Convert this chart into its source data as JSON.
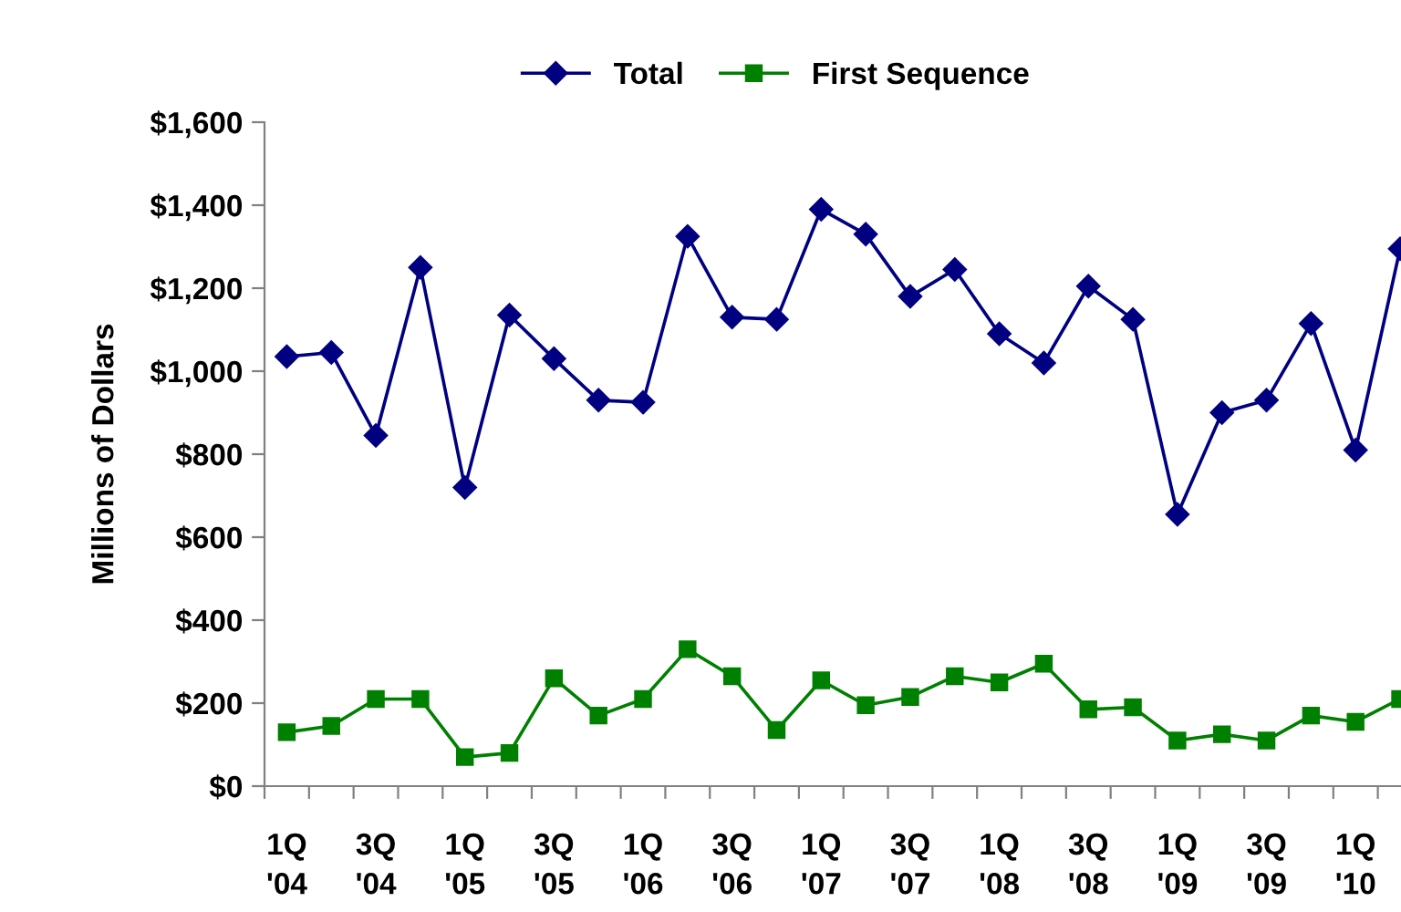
{
  "chart_data": {
    "type": "line",
    "ylabel": "Millions of Dollars",
    "categories": [
      "1Q\n'04",
      null,
      "3Q\n'04",
      null,
      "1Q\n'05",
      null,
      "3Q\n'05",
      null,
      "1Q\n'06",
      null,
      "3Q\n'06",
      null,
      "1Q\n'07",
      null,
      "3Q\n'07",
      null,
      "1Q\n'08",
      null,
      "3Q\n'08",
      null,
      "1Q\n'09",
      null,
      "3Q\n'09",
      null,
      "1Q\n'10",
      null
    ],
    "series": [
      {
        "name": "Total",
        "color": "#000080",
        "marker": "diamond",
        "values": [
          1035,
          1045,
          845,
          1250,
          720,
          1135,
          1030,
          930,
          925,
          1325,
          1130,
          1125,
          1390,
          1330,
          1180,
          1245,
          1090,
          1020,
          1205,
          1125,
          655,
          900,
          930,
          1115,
          810,
          1295
        ]
      },
      {
        "name": "First Sequence",
        "color": "#008000",
        "marker": "square",
        "values": [
          130,
          145,
          210,
          210,
          70,
          80,
          260,
          170,
          210,
          330,
          265,
          135,
          255,
          195,
          215,
          265,
          250,
          295,
          185,
          190,
          110,
          125,
          110,
          170,
          155,
          210
        ]
      }
    ],
    "ylim": [
      0,
      1600
    ],
    "yticks": [
      {
        "value": 0,
        "label": "$0"
      },
      {
        "value": 200,
        "label": "$200"
      },
      {
        "value": 400,
        "label": "$400"
      },
      {
        "value": 600,
        "label": "$600"
      },
      {
        "value": 800,
        "label": "$800"
      },
      {
        "value": 1000,
        "label": "$1,000"
      },
      {
        "value": 1200,
        "label": "$1,200"
      },
      {
        "value": 1400,
        "label": "$1,400"
      },
      {
        "value": 1600,
        "label": "$1,600"
      }
    ],
    "grid": false,
    "legend": "top",
    "line_style": "solid"
  }
}
